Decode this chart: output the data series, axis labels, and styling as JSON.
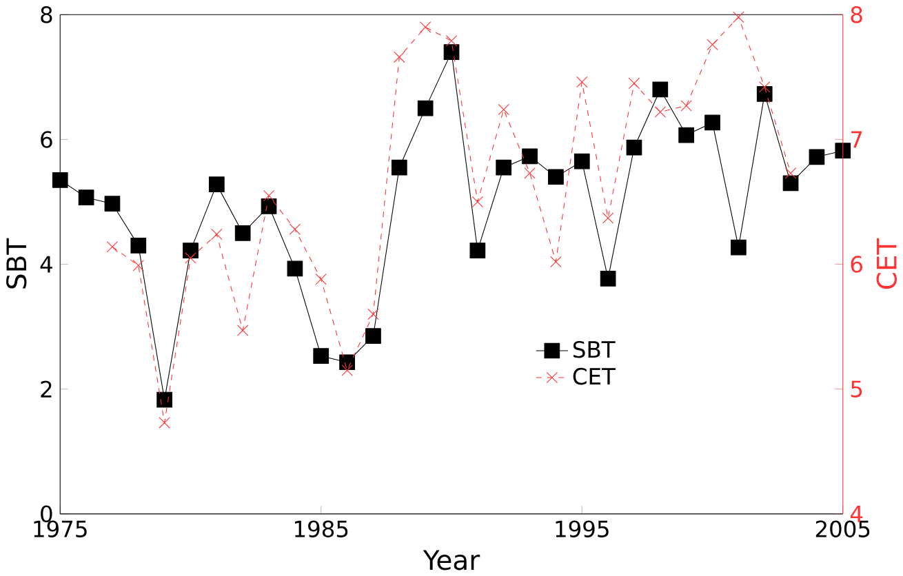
{
  "chart_data": {
    "type": "line",
    "xlabel": "Year",
    "ylabel": "SBT",
    "y2label": "CET",
    "x": [
      1975,
      1976,
      1977,
      1978,
      1979,
      1980,
      1981,
      1982,
      1983,
      1984,
      1985,
      1986,
      1987,
      1988,
      1989,
      1990,
      1991,
      1992,
      1993,
      1994,
      1995,
      1996,
      1997,
      1998,
      1999,
      2000,
      2001,
      2002,
      2003,
      2004,
      2005
    ],
    "series": [
      {
        "name": "SBT",
        "color": "#000000",
        "marker": "square",
        "line_style": "solid",
        "values": [
          5.35,
          5.07,
          4.97,
          4.3,
          1.83,
          4.22,
          5.28,
          4.5,
          4.93,
          3.93,
          2.53,
          2.43,
          2.85,
          5.55,
          6.5,
          7.4,
          4.22,
          5.55,
          5.73,
          5.4,
          5.65,
          3.77,
          5.87,
          6.8,
          6.07,
          6.27,
          4.27,
          6.73,
          5.3,
          5.72,
          5.82
        ]
      },
      {
        "name": "CET",
        "color": "#ff3333",
        "marker": "cross",
        "line_style": "dashed",
        "axis": "y2",
        "values": [
          null,
          null,
          6.14,
          5.99,
          4.73,
          6.05,
          6.24,
          5.47,
          6.55,
          6.28,
          5.88,
          5.15,
          5.6,
          7.66,
          7.9,
          7.79,
          6.5,
          7.24,
          6.73,
          6.02,
          7.46,
          6.37,
          7.45,
          7.22,
          7.27,
          7.76,
          7.98,
          7.42,
          6.73,
          null,
          null
        ]
      }
    ],
    "xlim": [
      1975,
      2005
    ],
    "xticks": [
      1975,
      1985,
      1995,
      2005
    ],
    "ylim": [
      0,
      8
    ],
    "yticks": [
      0,
      2,
      4,
      6,
      8
    ],
    "y2lim": [
      4,
      8
    ],
    "y2ticks": [
      4,
      5,
      6,
      7,
      8
    ],
    "legend": "right",
    "grid": false
  }
}
